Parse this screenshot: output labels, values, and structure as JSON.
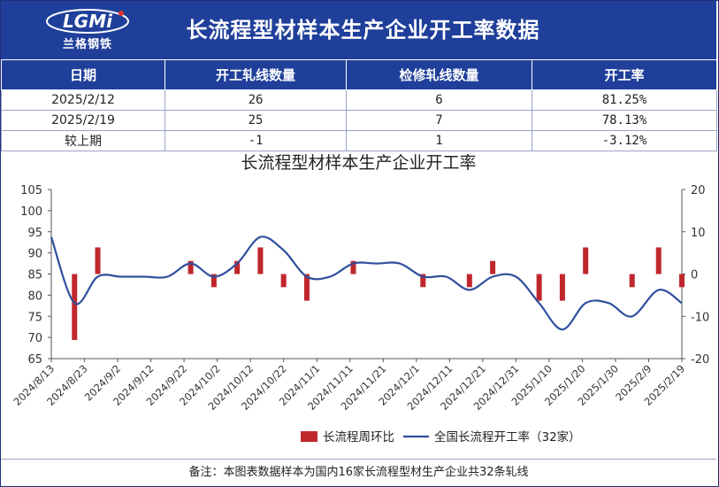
{
  "header": {
    "logo_mark": "LGMi",
    "logo_text": "兰格钢铁",
    "title": "长流程型材样本生产企业开工率数据"
  },
  "table": {
    "columns": [
      "日期",
      "开工轧线数量",
      "检修轧线数量",
      "开工率"
    ],
    "rows": [
      [
        "2025/2/12",
        "26",
        "6",
        "81.25%"
      ],
      [
        "2025/2/19",
        "25",
        "7",
        "78.13%"
      ],
      [
        "较上期",
        "-1",
        "1",
        "-3.12%"
      ]
    ]
  },
  "footer": {
    "note": "备注：本图表数据样本为国内16家长流程型材生产企业共32条轧线"
  },
  "colors": {
    "header_bg": "#1f3f9a",
    "bar": "#c0272d",
    "line": "#2f4f9e"
  },
  "chart_data": {
    "type": "bar+line",
    "title": "长流程型材样本生产企业开工率",
    "x_tick_labels": [
      "2024/8/13",
      "2024/8/23",
      "2024/9/2",
      "2024/9/12",
      "2024/9/22",
      "2024/10/2",
      "2024/10/12",
      "2024/10/22",
      "2024/11/1",
      "2024/11/11",
      "2024/11/21",
      "2024/12/1",
      "2024/12/11",
      "2024/12/21",
      "2024/12/31",
      "2025/1/10",
      "2025/1/20",
      "2025/1/30",
      "2025/2/9",
      "2025/2/19"
    ],
    "x_range": [
      "2024/8/13",
      "2025/2/19"
    ],
    "y_left": {
      "range": [
        65,
        105
      ],
      "ticks": [
        65,
        70,
        75,
        80,
        85,
        90,
        95,
        100,
        105
      ]
    },
    "y_right": {
      "range": [
        -20,
        20
      ],
      "ticks": [
        -20,
        -10,
        0,
        10,
        20
      ]
    },
    "grid": false,
    "legend_position": "bottom",
    "series": [
      {
        "name": "长流程周环比",
        "type": "bar",
        "axis": "right",
        "points": [
          [
            "2024/8/20",
            -15.6
          ],
          [
            "2024/8/27",
            6.3
          ],
          [
            "2024/9/24",
            3.1
          ],
          [
            "2024/10/1",
            -3.1
          ],
          [
            "2024/10/8",
            3.1
          ],
          [
            "2024/10/15",
            6.3
          ],
          [
            "2024/10/22",
            -3.1
          ],
          [
            "2024/10/29",
            -6.3
          ],
          [
            "2024/11/12",
            3.1
          ],
          [
            "2024/12/3",
            -3.1
          ],
          [
            "2024/12/17",
            -3.1
          ],
          [
            "2024/12/24",
            3.1
          ],
          [
            "2025/1/7",
            -6.3
          ],
          [
            "2025/1/14",
            -6.3
          ],
          [
            "2025/1/21",
            6.3
          ],
          [
            "2025/2/4",
            -3.1
          ],
          [
            "2025/2/12",
            6.3
          ],
          [
            "2025/2/19",
            -3.1
          ]
        ]
      },
      {
        "name": "全国长流程开工率（32家）",
        "type": "line",
        "axis": "left",
        "points": [
          [
            "2024/8/13",
            93.75
          ],
          [
            "2024/8/20",
            78.13
          ],
          [
            "2024/8/27",
            84.38
          ],
          [
            "2024/9/3",
            84.38
          ],
          [
            "2024/9/10",
            84.38
          ],
          [
            "2024/9/17",
            84.38
          ],
          [
            "2024/9/24",
            87.5
          ],
          [
            "2024/10/1",
            84.38
          ],
          [
            "2024/10/8",
            87.5
          ],
          [
            "2024/10/15",
            93.75
          ],
          [
            "2024/10/22",
            90.63
          ],
          [
            "2024/10/29",
            84.38
          ],
          [
            "2024/11/5",
            84.38
          ],
          [
            "2024/11/12",
            87.5
          ],
          [
            "2024/11/19",
            87.5
          ],
          [
            "2024/11/26",
            87.5
          ],
          [
            "2024/12/3",
            84.38
          ],
          [
            "2024/12/10",
            84.38
          ],
          [
            "2024/12/17",
            81.25
          ],
          [
            "2024/12/24",
            84.38
          ],
          [
            "2024/12/31",
            84.38
          ],
          [
            "2025/1/7",
            78.13
          ],
          [
            "2025/1/14",
            71.88
          ],
          [
            "2025/1/21",
            78.13
          ],
          [
            "2025/1/28",
            78.13
          ],
          [
            "2025/2/4",
            75.0
          ],
          [
            "2025/2/12",
            81.25
          ],
          [
            "2025/2/19",
            78.13
          ]
        ]
      }
    ]
  }
}
